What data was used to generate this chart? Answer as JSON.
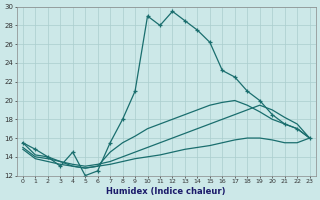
{
  "xlabel": "Humidex (Indice chaleur)",
  "bg_color": "#cce8e8",
  "grid_color": "#aacece",
  "line_color": "#1a6e6e",
  "xlim": [
    -0.5,
    23.5
  ],
  "ylim": [
    12,
    30
  ],
  "xticks": [
    0,
    1,
    2,
    3,
    4,
    5,
    6,
    7,
    8,
    9,
    10,
    11,
    12,
    13,
    14,
    15,
    16,
    17,
    18,
    19,
    20,
    21,
    22,
    23
  ],
  "yticks": [
    12,
    14,
    16,
    18,
    20,
    22,
    24,
    26,
    28,
    30
  ],
  "line1_x": [
    0,
    1,
    2,
    3,
    4,
    5,
    6,
    7,
    8,
    9,
    10,
    11,
    12,
    13,
    14,
    15,
    16,
    17,
    18,
    19,
    20,
    21,
    22,
    23
  ],
  "line1_y": [
    15.5,
    14.8,
    14.0,
    13.0,
    14.5,
    12.0,
    12.5,
    15.5,
    18.0,
    21.0,
    29.0,
    28.0,
    29.5,
    28.5,
    27.5,
    26.2,
    23.2,
    22.5,
    21.0,
    20.0,
    18.5,
    17.5,
    17.0,
    16.0
  ],
  "line2_x": [
    0,
    1,
    2,
    3,
    4,
    5,
    6,
    7,
    8,
    9,
    10,
    11,
    12,
    13,
    14,
    15,
    16,
    17,
    18,
    19,
    20,
    21,
    22,
    23
  ],
  "line2_y": [
    15.5,
    14.2,
    14.0,
    13.5,
    13.0,
    12.8,
    13.0,
    14.5,
    15.5,
    16.2,
    17.0,
    17.5,
    18.0,
    18.5,
    19.0,
    19.5,
    19.8,
    20.0,
    19.5,
    18.8,
    18.0,
    17.5,
    17.0,
    16.0
  ],
  "line3_x": [
    0,
    1,
    2,
    3,
    4,
    5,
    6,
    7,
    8,
    9,
    10,
    11,
    12,
    13,
    14,
    15,
    16,
    17,
    18,
    19,
    20,
    21,
    22,
    23
  ],
  "line3_y": [
    15.0,
    14.0,
    13.8,
    13.5,
    13.2,
    13.0,
    13.2,
    13.5,
    14.0,
    14.5,
    15.0,
    15.5,
    16.0,
    16.5,
    17.0,
    17.5,
    18.0,
    18.5,
    19.0,
    19.5,
    19.0,
    18.2,
    17.5,
    16.0
  ],
  "line4_x": [
    0,
    1,
    2,
    3,
    4,
    5,
    6,
    7,
    8,
    9,
    10,
    11,
    12,
    13,
    14,
    15,
    16,
    17,
    18,
    19,
    20,
    21,
    22,
    23
  ],
  "line4_y": [
    14.8,
    13.8,
    13.5,
    13.2,
    13.0,
    12.8,
    13.0,
    13.2,
    13.5,
    13.8,
    14.0,
    14.2,
    14.5,
    14.8,
    15.0,
    15.2,
    15.5,
    15.8,
    16.0,
    16.0,
    15.8,
    15.5,
    15.5,
    16.0
  ]
}
